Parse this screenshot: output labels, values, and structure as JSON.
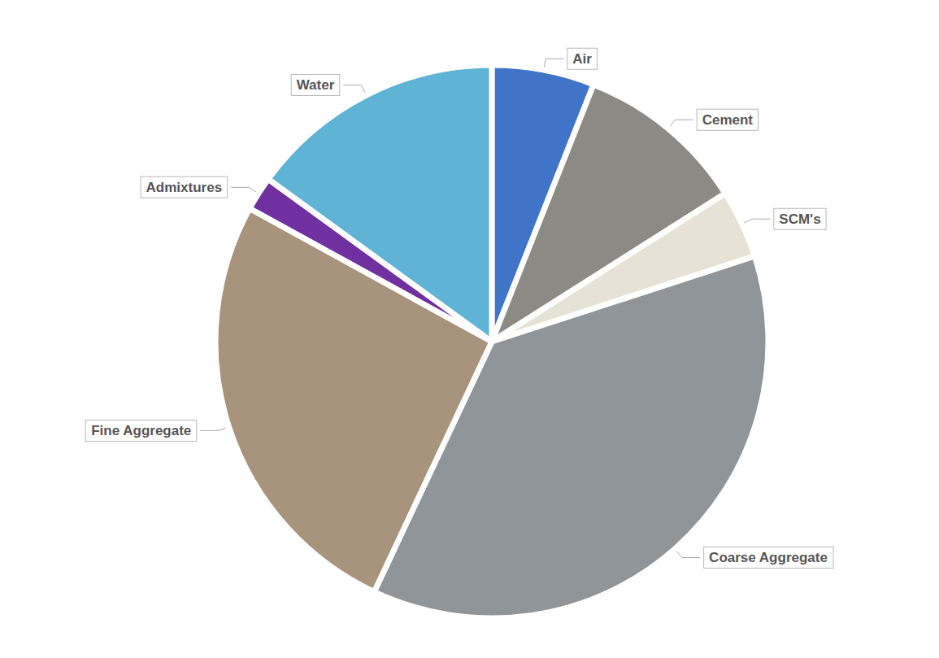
{
  "chart_data": {
    "type": "pie",
    "categories": [
      "Air",
      "Cement",
      "SCM's",
      "Coarse Aggregate",
      "Fine Aggregate",
      "Admixtures",
      "Water"
    ],
    "values": [
      6,
      10,
      4,
      37,
      26,
      2,
      15
    ],
    "colors": [
      "#3f74c9",
      "#8b8a84",
      "#e6e3d6",
      "#8f9598",
      "#a8937d",
      "#7030a0",
      "#5fb3d4"
    ],
    "data_labels": false
  }
}
